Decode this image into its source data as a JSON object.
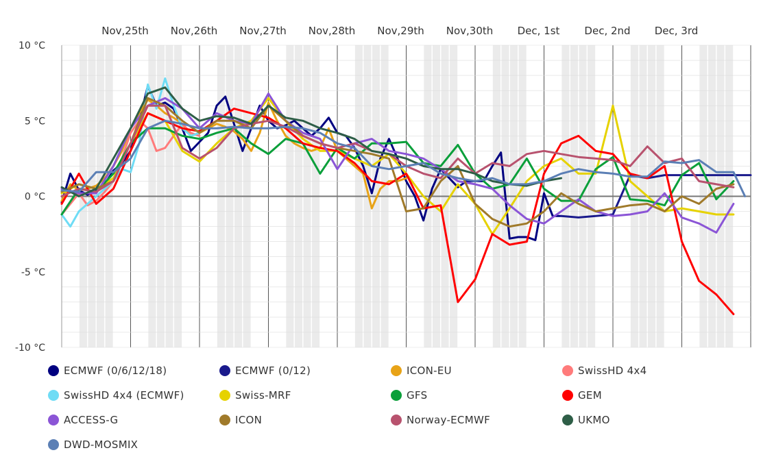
{
  "chart_data": {
    "type": "line",
    "title": "",
    "xlabel": "",
    "ylabel": "",
    "ylim": [
      -10,
      10
    ],
    "y_ticks": [
      "10 °C",
      "5 °C",
      "0 °C",
      "-5 °C",
      "-10 °C"
    ],
    "y_tick_values": [
      10,
      5,
      0,
      -5,
      -10
    ],
    "x_unit": "hours since Nov 24, 12:00",
    "x_range": [
      0,
      240
    ],
    "x_day_labels": [
      "Nov,25th",
      "Nov,26th",
      "Nov,27th",
      "Nov,28th",
      "Nov,29th",
      "Nov,30th",
      "Dec, 1st",
      "Dec, 2nd",
      "Dec, 3rd"
    ],
    "x_day_label_hours": [
      24,
      48,
      72,
      96,
      120,
      144,
      168,
      192,
      216
    ],
    "night_bands_hours": [
      [
        6,
        18
      ],
      [
        30,
        42
      ],
      [
        54,
        66
      ],
      [
        78,
        90
      ],
      [
        102,
        114
      ],
      [
        126,
        138
      ],
      [
        150,
        162
      ],
      [
        174,
        186
      ],
      [
        198,
        210
      ],
      [
        222,
        234
      ]
    ],
    "zero_line": true,
    "grid": true,
    "legend_position": "bottom",
    "series": [
      {
        "name": "ECMWF (0/6/12/18)",
        "color": "#000080",
        "x": [
          0,
          3,
          6,
          9,
          12,
          15,
          18,
          21,
          24,
          27,
          30,
          33,
          36,
          39,
          42,
          45,
          48,
          51,
          54,
          57,
          60,
          63,
          66,
          69,
          72,
          75,
          78,
          81,
          84,
          87,
          90,
          93,
          96,
          99,
          102,
          105,
          108,
          111,
          114,
          117,
          120,
          123,
          126,
          129,
          132,
          135,
          138,
          141,
          144,
          147,
          150,
          153,
          156,
          159,
          162,
          165,
          168,
          171,
          174
        ],
        "y": [
          -0.4,
          1.5,
          0.4,
          0.1,
          0.4,
          0.8,
          1.7,
          2.2,
          3.0,
          5.0,
          7.3,
          6.0,
          6.2,
          5.8,
          4.5,
          3.0,
          3.6,
          4.2,
          6.0,
          6.6,
          4.8,
          3.0,
          4.5,
          6.0,
          5.0,
          4.5,
          4.7,
          5.0,
          4.5,
          4.0,
          4.5,
          5.2,
          4.2,
          4.0,
          3.2,
          2.0,
          0.2,
          2.5,
          3.8,
          2.5,
          1.0,
          0.0,
          -1.6,
          0.5,
          1.8,
          1.2,
          0.6,
          1.0,
          1.0,
          1.0,
          2.0,
          2.9,
          -2.8,
          -2.7,
          -2.7,
          -2.9,
          0.2,
          -1.3,
          -1.3
        ]
      },
      {
        "name": "ECMWF (0/12)",
        "color": "#1a1a8c",
        "x": [
          174,
          180,
          186,
          192,
          198,
          204,
          210,
          216,
          222,
          228,
          234,
          240
        ],
        "y": [
          -1.3,
          -1.4,
          -1.3,
          -1.2,
          1.4,
          1.2,
          1.4,
          1.4,
          1.4,
          1.4,
          1.4,
          1.4
        ]
      },
      {
        "name": "ICON-EU",
        "color": "#e8a317",
        "x": [
          0,
          3,
          6,
          9,
          12,
          15,
          18,
          21,
          24,
          27,
          30,
          33,
          36,
          39,
          42,
          45,
          48,
          51,
          54,
          57,
          60,
          63,
          66,
          69,
          72,
          75,
          78,
          81,
          84,
          87,
          90,
          93,
          96,
          99,
          102,
          105,
          108,
          111,
          114,
          117,
          120
        ],
        "y": [
          -0.3,
          0.8,
          0.4,
          0.5,
          0.7,
          1.2,
          2.0,
          3.0,
          4.5,
          5.5,
          6.4,
          6.0,
          5.5,
          5.2,
          4.8,
          4.0,
          4.2,
          4.5,
          4.8,
          4.6,
          4.3,
          3.8,
          3.0,
          4.2,
          6.2,
          5.0,
          4.0,
          3.5,
          3.2,
          3.0,
          3.2,
          4.5,
          3.0,
          2.5,
          2.0,
          1.5,
          -0.8,
          0.5,
          1.0,
          1.0,
          1.2
        ]
      },
      {
        "name": "SwissHD 4x4",
        "color": "#ff7b7b",
        "x": [
          0,
          3,
          6,
          9,
          12,
          15,
          18,
          21,
          24,
          27,
          30,
          33,
          36,
          39,
          42,
          45,
          48
        ],
        "y": [
          -1.2,
          -0.5,
          0.2,
          -0.6,
          -0.3,
          0.3,
          1.0,
          2.5,
          4.2,
          5.0,
          4.5,
          3.0,
          3.2,
          4.0,
          4.8,
          4.2,
          4.0
        ]
      },
      {
        "name": "SwissHD 4x4 (ECMWF)",
        "color": "#6fdcf5",
        "x": [
          0,
          3,
          6,
          9,
          12,
          15,
          18,
          21,
          24,
          27,
          30,
          33,
          36,
          39,
          42,
          45,
          48
        ],
        "y": [
          -1.2,
          -2.0,
          -1.0,
          -0.5,
          0.0,
          0.5,
          1.0,
          1.8,
          1.6,
          3.5,
          7.4,
          5.8,
          7.8,
          6.0,
          4.5,
          4.0,
          4.2
        ]
      },
      {
        "name": "Swiss-MRF",
        "color": "#e6d200",
        "x": [
          0,
          6,
          12,
          18,
          24,
          30,
          36,
          42,
          48,
          54,
          60,
          66,
          72,
          78,
          84,
          90,
          96,
          102,
          108,
          114,
          120,
          126,
          132,
          138,
          144,
          150,
          156,
          162,
          168,
          174,
          180,
          186,
          192,
          198,
          204,
          210,
          216,
          222,
          228,
          234
        ],
        "y": [
          0.2,
          0.8,
          0.5,
          1.2,
          3.5,
          5.5,
          5.0,
          3.0,
          2.3,
          3.5,
          4.5,
          5.0,
          6.5,
          5.0,
          3.8,
          3.0,
          3.0,
          2.5,
          2.0,
          2.8,
          1.5,
          0.0,
          -1.0,
          0.8,
          -0.5,
          -2.5,
          -0.8,
          1.0,
          2.0,
          2.5,
          1.5,
          1.5,
          6.0,
          1.0,
          0.0,
          -1.0,
          -0.8,
          -1.0,
          -1.2,
          -1.2
        ]
      },
      {
        "name": "GFS",
        "color": "#0a9f3a",
        "x": [
          0,
          6,
          12,
          18,
          24,
          30,
          36,
          42,
          48,
          54,
          60,
          66,
          72,
          78,
          84,
          90,
          96,
          102,
          108,
          114,
          120,
          126,
          132,
          138,
          144,
          150,
          156,
          162,
          168,
          174,
          180,
          186,
          192,
          198,
          204,
          210,
          216,
          222,
          228,
          234
        ],
        "y": [
          -1.2,
          0.5,
          0.3,
          1.5,
          3.5,
          4.5,
          4.5,
          4.0,
          3.8,
          4.2,
          4.5,
          3.5,
          2.8,
          3.8,
          3.5,
          1.5,
          3.2,
          2.5,
          3.5,
          3.5,
          3.6,
          2.2,
          2.0,
          3.4,
          1.5,
          0.5,
          0.8,
          2.5,
          0.5,
          -0.3,
          -0.3,
          1.8,
          2.6,
          -0.2,
          -0.3,
          -0.6,
          1.4,
          2.2,
          -0.2,
          1.0
        ]
      },
      {
        "name": "GEM",
        "color": "#ff0000",
        "x": [
          0,
          6,
          12,
          18,
          24,
          30,
          36,
          42,
          48,
          54,
          60,
          66,
          72,
          78,
          84,
          90,
          96,
          102,
          108,
          114,
          120,
          126,
          132,
          138,
          144,
          150,
          156,
          162,
          168,
          174,
          180,
          186,
          192,
          198,
          204,
          210,
          216,
          222,
          228,
          234
        ],
        "y": [
          -0.5,
          1.5,
          -0.5,
          0.5,
          3.0,
          5.5,
          5.0,
          4.5,
          4.3,
          5.0,
          5.8,
          5.5,
          5.2,
          4.5,
          3.5,
          3.2,
          3.0,
          2.2,
          1.0,
          0.8,
          1.5,
          -0.8,
          -0.6,
          -7.0,
          -5.5,
          -2.5,
          -3.2,
          -3.0,
          1.5,
          3.5,
          4.0,
          3.0,
          2.8,
          1.5,
          1.2,
          2.0,
          -3.0,
          -5.6,
          -6.5,
          -7.8
        ]
      },
      {
        "name": "ACCESS-G",
        "color": "#8b55d6",
        "x": [
          0,
          6,
          12,
          18,
          24,
          30,
          36,
          42,
          48,
          54,
          60,
          66,
          72,
          78,
          84,
          90,
          96,
          102,
          108,
          114,
          120,
          126,
          132,
          138,
          144,
          150,
          156,
          162,
          168,
          174,
          180,
          186,
          192,
          198,
          204,
          210,
          216,
          222,
          228,
          234
        ],
        "y": [
          0.5,
          0.2,
          0.2,
          2.0,
          4.5,
          6.0,
          6.5,
          5.8,
          4.5,
          5.5,
          5.0,
          4.8,
          6.8,
          5.0,
          4.2,
          3.8,
          1.8,
          3.5,
          3.8,
          3.0,
          2.8,
          2.5,
          1.8,
          1.0,
          0.8,
          0.5,
          -0.6,
          -1.5,
          -1.8,
          -1.0,
          -0.2,
          -1.0,
          -1.3,
          -1.2,
          -1.0,
          0.2,
          -1.4,
          -1.8,
          -2.4,
          -0.5
        ]
      },
      {
        "name": "ICON",
        "color": "#a07a2a",
        "x": [
          0,
          6,
          12,
          18,
          24,
          30,
          36,
          42,
          48,
          54,
          60,
          66,
          72,
          78,
          84,
          90,
          96,
          102,
          108,
          114,
          120,
          126,
          132,
          138,
          144,
          150,
          156,
          162,
          168,
          174,
          180,
          186,
          192,
          198,
          204,
          210,
          216,
          222,
          228,
          234
        ],
        "y": [
          0.3,
          0.8,
          0.5,
          1.0,
          3.5,
          6.5,
          6.0,
          5.0,
          4.2,
          5.0,
          5.0,
          4.5,
          6.0,
          5.0,
          4.0,
          3.5,
          3.2,
          3.0,
          2.8,
          2.5,
          -1.0,
          -0.8,
          1.0,
          2.0,
          -0.5,
          -1.5,
          -2.0,
          -1.8,
          -1.0,
          0.2,
          -0.5,
          -1.0,
          -0.8,
          -0.6,
          -0.5,
          -1.0,
          0.0,
          -0.5,
          0.5,
          0.8
        ]
      },
      {
        "name": "Norway-ECMWF",
        "color": "#b8526e",
        "x": [
          0,
          6,
          12,
          18,
          24,
          30,
          36,
          42,
          48,
          54,
          60,
          66,
          72,
          78,
          84,
          90,
          96,
          102,
          108,
          114,
          120,
          126,
          132,
          138,
          144,
          150,
          156,
          162,
          168,
          174,
          180,
          186,
          192,
          198,
          204,
          210,
          216,
          222,
          228,
          234
        ],
        "y": [
          0.0,
          0.5,
          0.3,
          1.0,
          3.5,
          6.0,
          6.0,
          3.2,
          2.5,
          3.2,
          4.5,
          4.8,
          5.0,
          4.6,
          4.0,
          3.5,
          3.2,
          3.5,
          3.0,
          2.8,
          2.0,
          1.5,
          1.2,
          2.5,
          1.5,
          2.2,
          2.0,
          2.8,
          3.0,
          2.8,
          2.6,
          2.5,
          2.4,
          2.0,
          3.3,
          2.2,
          2.5,
          1.0,
          0.8,
          0.6
        ]
      },
      {
        "name": "UKMO",
        "color": "#2e5e47",
        "x": [
          0,
          6,
          12,
          18,
          24,
          30,
          36,
          42,
          48,
          54,
          60,
          66,
          72,
          78,
          84,
          90,
          96,
          102,
          108,
          114,
          120,
          126,
          132,
          138,
          144,
          150,
          156,
          162,
          168,
          174
        ],
        "y": [
          0.6,
          0.0,
          0.5,
          2.5,
          4.5,
          6.8,
          7.2,
          5.8,
          5.0,
          5.3,
          5.2,
          4.8,
          6.0,
          5.2,
          5.0,
          4.5,
          4.2,
          3.8,
          3.0,
          2.8,
          2.5,
          2.0,
          1.8,
          1.8,
          1.5,
          1.0,
          0.8,
          0.7,
          1.0,
          1.2
        ]
      },
      {
        "name": "DWD-MOSMIX",
        "color": "#5b7fb5",
        "x": [
          0,
          6,
          12,
          18,
          24,
          30,
          36,
          42,
          48,
          54,
          60,
          66,
          72,
          78,
          84,
          90,
          96,
          102,
          108,
          114,
          120,
          126,
          132,
          138,
          144,
          150,
          156,
          162,
          168,
          174,
          180,
          186,
          192,
          198,
          204,
          210,
          216,
          222,
          228,
          234,
          238
        ],
        "y": [
          0.4,
          0.3,
          1.6,
          1.6,
          2.5,
          4.5,
          5.0,
          4.8,
          4.5,
          4.5,
          4.6,
          4.5,
          4.5,
          4.6,
          4.5,
          4.2,
          3.5,
          3.2,
          2.0,
          1.8,
          2.0,
          2.2,
          1.5,
          1.2,
          1.0,
          1.2,
          0.8,
          0.8,
          1.0,
          1.5,
          1.8,
          1.6,
          1.5,
          1.3,
          1.3,
          2.3,
          2.2,
          2.4,
          1.6,
          1.6,
          0.0
        ]
      }
    ]
  }
}
